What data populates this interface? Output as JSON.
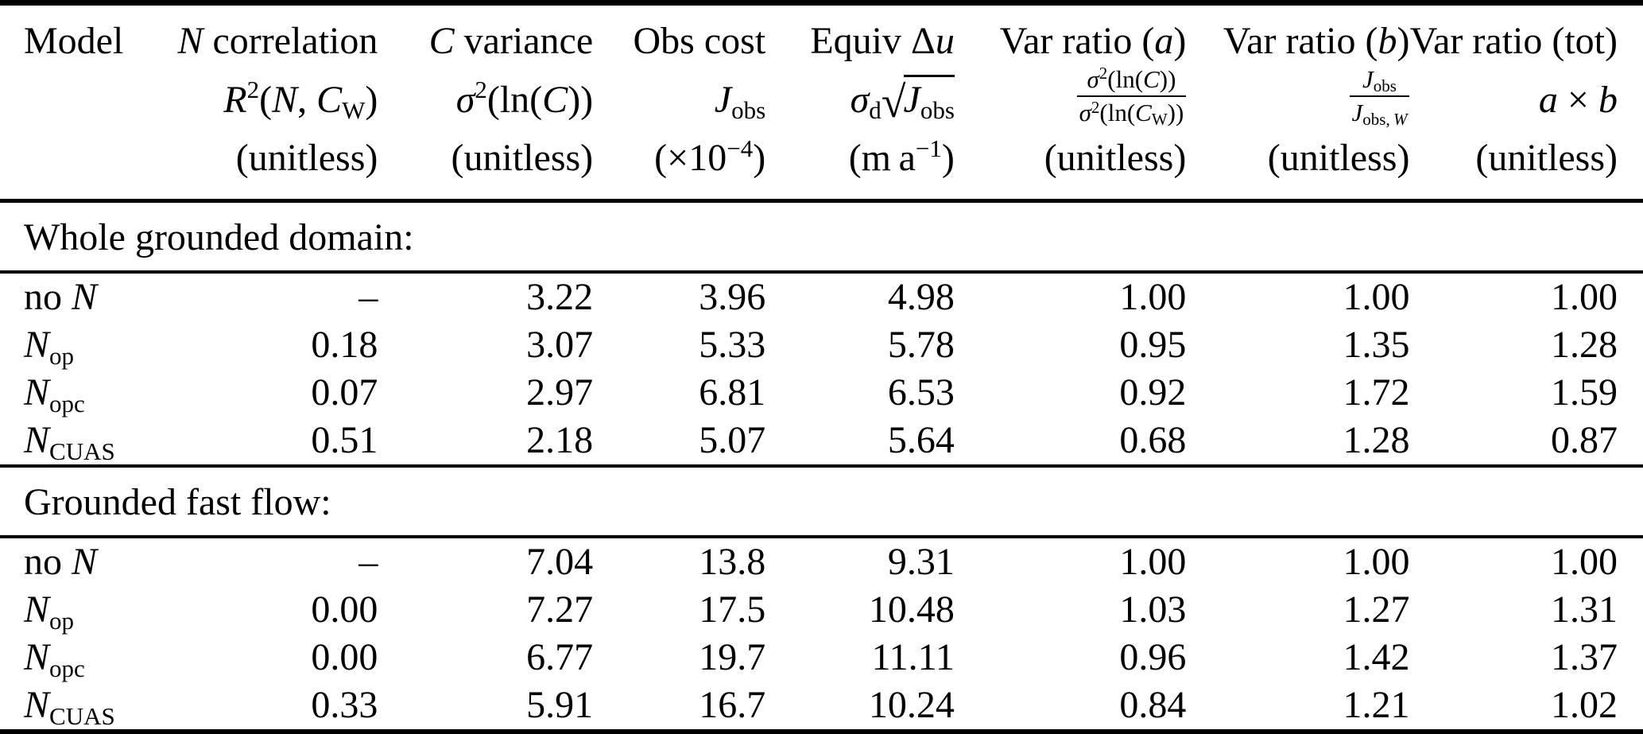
{
  "colors": {
    "text": "#000000",
    "background": "#ffffff",
    "rule": "#000000"
  },
  "table": {
    "header": {
      "cols": [
        {
          "l1": "Model",
          "l2": "",
          "l3": ""
        },
        {
          "l1": "<i>N</i> correlation",
          "l2": "<i>R</i><sup>2</sup>(<i>N</i>, <i>C</i><sub>W</sub>)",
          "l3": "(unitless)"
        },
        {
          "l1": "<i>C</i> variance",
          "l2": "<i>σ</i><sup>2</sup>(ln(<i>C</i>))",
          "l3": "(unitless)"
        },
        {
          "l1": "Obs cost",
          "l2": "<i>J</i><sub>obs</sub>",
          "l3": "(×10<sup>−4</sup>)"
        },
        {
          "l1": "Equiv Δ<i>u</i>",
          "l2": "<i>σ</i><sub>d</sub><span class=\"sqrt-sign\" data-name=\"sqrt-radical-icon\">√</span><span class=\"radicand\"><i>J</i><sub>obs</sub></span>",
          "l3": "(m a<sup>−1</sup>)"
        },
        {
          "l1": "Var ratio (<i>a</i>)",
          "l2": "<span class=\"frac\"><span class=\"num\"><i>σ</i><sup>2</sup>(ln(<i>C</i>))</span><span class=\"den\"><i>σ</i><sup>2</sup>(ln(<i>C</i><sub>W</sub>))</span></span>",
          "l3": "(unitless)"
        },
        {
          "l1": "Var ratio (<i>b</i>)",
          "l2": "<span class=\"frac\"><span class=\"num\"><i>J</i><sub>obs</sub></span><span class=\"den\"><i>J</i><sub>obs, <i>W</i></sub></span></span>",
          "l3": "(unitless)"
        },
        {
          "l1": "Var ratio (tot)",
          "l2": "<i>a</i> × <i>b</i>",
          "l3": "(unitless)"
        }
      ]
    },
    "sections": [
      {
        "title": "Whole grounded domain:",
        "rows": [
          {
            "model": "no <i>N</i>",
            "values": [
              "–",
              "3.22",
              "3.96",
              "4.98",
              "1.00",
              "1.00",
              "1.00"
            ]
          },
          {
            "model": "<i>N</i><sub>op</sub>",
            "values": [
              "0.18",
              "3.07",
              "5.33",
              "5.78",
              "0.95",
              "1.35",
              "1.28"
            ]
          },
          {
            "model": "<i>N</i><sub>opc</sub>",
            "values": [
              "0.07",
              "2.97",
              "6.81",
              "6.53",
              "0.92",
              "1.72",
              "1.59"
            ]
          },
          {
            "model": "<i>N</i><sub>CUAS</sub>",
            "values": [
              "0.51",
              "2.18",
              "5.07",
              "5.64",
              "0.68",
              "1.28",
              "0.87"
            ]
          }
        ]
      },
      {
        "title": "Grounded fast flow:",
        "rows": [
          {
            "model": "no <i>N</i>",
            "values": [
              "–",
              "7.04",
              "13.8",
              "9.31",
              "1.00",
              "1.00",
              "1.00"
            ]
          },
          {
            "model": "<i>N</i><sub>op</sub>",
            "values": [
              "0.00",
              "7.27",
              "17.5",
              "10.48",
              "1.03",
              "1.27",
              "1.31"
            ]
          },
          {
            "model": "<i>N</i><sub>opc</sub>",
            "values": [
              "0.00",
              "6.77",
              "19.7",
              "11.11",
              "0.96",
              "1.42",
              "1.37"
            ]
          },
          {
            "model": "<i>N</i><sub>CUAS</sub>",
            "values": [
              "0.33",
              "5.91",
              "16.7",
              "10.24",
              "0.84",
              "1.21",
              "1.02"
            ]
          }
        ]
      }
    ]
  }
}
